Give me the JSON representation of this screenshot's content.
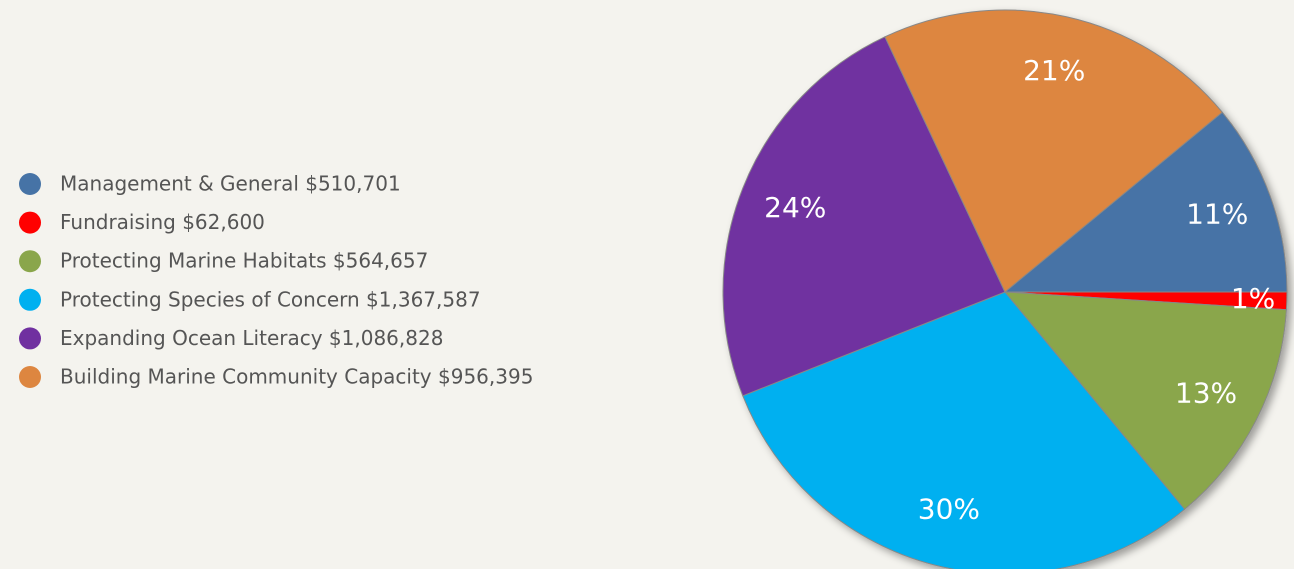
{
  "chart_data": {
    "type": "pie",
    "categories": [
      "Management & General $510,701",
      "Fundraising $62,600",
      "Protecting Marine Habitats $564,657",
      "Protecting Species of Concern $1,367,587",
      "Expanding Ocean Literacy $1,086,828",
      "Building Marine Community Capacity $956,395"
    ],
    "values": [
      11,
      1,
      13,
      30,
      24,
      21
    ],
    "value_labels": [
      "11%",
      "1%",
      "13%",
      "30%",
      "24%",
      "21%"
    ],
    "colors": [
      "#4673a6",
      "#ff0000",
      "#8aa64b",
      "#00b0f0",
      "#7030a0",
      "#dd8640"
    ],
    "legend": "left"
  }
}
